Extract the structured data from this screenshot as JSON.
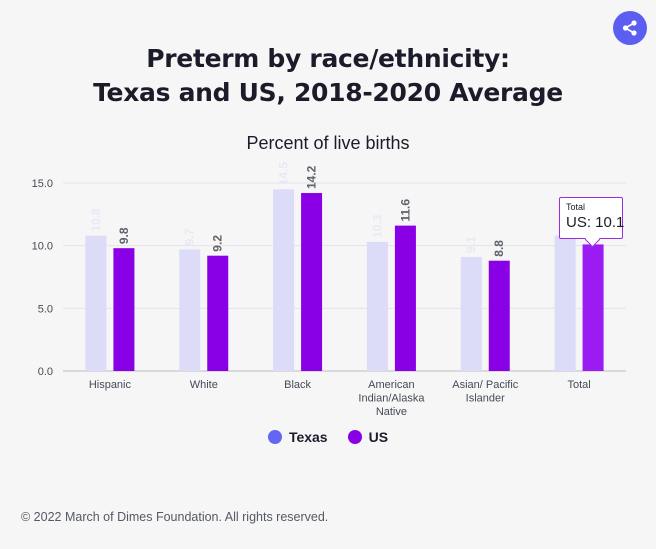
{
  "header": {
    "title_line1": "Preterm by race/ethnicity:",
    "title_line2": "Texas and US, 2018-2020 Average",
    "subtitle": "Percent of live births",
    "share_icon": "share-icon"
  },
  "chart_data": {
    "type": "bar",
    "title": "Preterm by race/ethnicity: Texas and US, 2018-2020 Average",
    "ylabel": "Percent of live births",
    "xlabel": "",
    "categories": [
      "Hispanic",
      "White",
      "Black",
      "American Indian/Alaska Native",
      "Asian/ Pacific Islander",
      "Total"
    ],
    "category_lines": [
      [
        "Hispanic"
      ],
      [
        "White"
      ],
      [
        "Black"
      ],
      [
        "American",
        "Indian/Alaska",
        "Native"
      ],
      [
        "Asian/ Pacific",
        "Islander"
      ],
      [
        "Total"
      ]
    ],
    "series": [
      {
        "name": "Texas",
        "color": "#dcdcf8",
        "values": [
          10.8,
          9.7,
          14.5,
          10.3,
          9.1,
          10.8
        ]
      },
      {
        "name": "US",
        "color": "#8a00e6",
        "values": [
          9.8,
          9.2,
          14.2,
          11.6,
          8.8,
          10.1
        ]
      }
    ],
    "ylim": [
      0,
      15
    ],
    "yticks": [
      "0.0",
      "5.0",
      "10.0",
      "15.0"
    ],
    "ytick_values": [
      0,
      5,
      10,
      15
    ],
    "grid": true,
    "legend_position": "bottom",
    "highlighted_color": "#9b1cf2",
    "highlighted_category": "Total",
    "highlighted_series": "US"
  },
  "legend": {
    "texas_label": "Texas",
    "us_label": "US",
    "texas_color": "#6366f1",
    "us_color": "#8a00e6"
  },
  "tooltip": {
    "title": "Total",
    "value": "US: 10.1"
  },
  "footer": {
    "copyright": "© 2022 March of Dimes Foundation. All rights reserved."
  }
}
